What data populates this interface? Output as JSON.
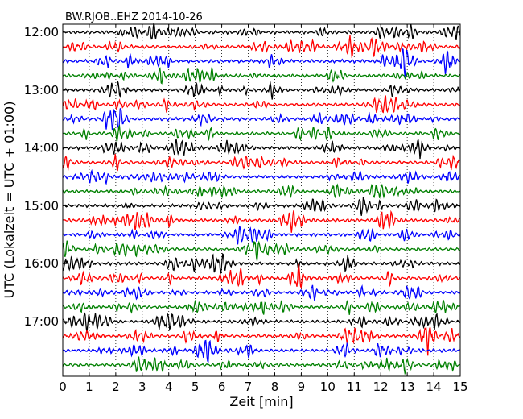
{
  "chart_data": {
    "type": "line",
    "title": "BW.RJOB..EHZ 2014-10-26",
    "xlabel": "Zeit  [min]",
    "ylabel": "UTC (Lokalzeit = UTC + 01:00)",
    "xlim": [
      0,
      15
    ],
    "xticks": [
      "0",
      "1",
      "2",
      "3",
      "4",
      "5",
      "6",
      "7",
      "8",
      "9",
      "10",
      "11",
      "12",
      "13",
      "14",
      "15"
    ],
    "yticks": [
      "12:00",
      "13:00",
      "14:00",
      "15:00",
      "16:00",
      "17:00"
    ],
    "row_minutes": 15,
    "grid": "vertical-dotted",
    "series": [
      {
        "start": "12:00",
        "color": "#000000"
      },
      {
        "start": "12:15",
        "color": "#ff0000"
      },
      {
        "start": "12:30",
        "color": "#0000ff"
      },
      {
        "start": "12:45",
        "color": "#008000"
      },
      {
        "start": "13:00",
        "color": "#000000"
      },
      {
        "start": "13:15",
        "color": "#ff0000"
      },
      {
        "start": "13:30",
        "color": "#0000ff"
      },
      {
        "start": "13:45",
        "color": "#008000"
      },
      {
        "start": "14:00",
        "color": "#000000"
      },
      {
        "start": "14:15",
        "color": "#ff0000"
      },
      {
        "start": "14:30",
        "color": "#0000ff"
      },
      {
        "start": "14:45",
        "color": "#008000"
      },
      {
        "start": "15:00",
        "color": "#000000"
      },
      {
        "start": "15:15",
        "color": "#ff0000"
      },
      {
        "start": "15:30",
        "color": "#0000ff"
      },
      {
        "start": "15:45",
        "color": "#008000"
      },
      {
        "start": "16:00",
        "color": "#000000"
      },
      {
        "start": "16:15",
        "color": "#ff0000"
      },
      {
        "start": "16:30",
        "color": "#0000ff"
      },
      {
        "start": "16:45",
        "color": "#008000"
      },
      {
        "start": "17:00",
        "color": "#000000"
      },
      {
        "start": "17:15",
        "color": "#ff0000"
      },
      {
        "start": "17:30",
        "color": "#0000ff"
      },
      {
        "start": "17:45",
        "color": "#008000"
      }
    ]
  }
}
